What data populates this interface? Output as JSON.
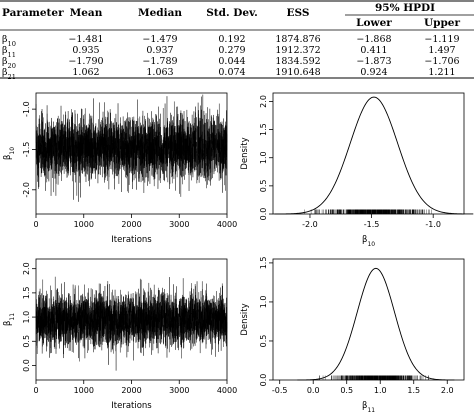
{
  "table": {
    "headers": [
      "Parameter",
      "Mean",
      "Median",
      "Std. Dev.",
      "ESS"
    ],
    "hpdi_group": "95% HPDI",
    "hpdi_subheaders": [
      "Lower",
      "Upper"
    ],
    "rows": [
      {
        "param": "β10",
        "base": "β",
        "sub": "10",
        "values": [
          "−1.481",
          "−1.479",
          "0.192",
          "1874.876",
          "−1.868",
          "−1.119"
        ]
      },
      {
        "param": "β11",
        "base": "β",
        "sub": "11",
        "values": [
          "0.935",
          "0.937",
          "0.279",
          "1912.372",
          "0.411",
          "1.497"
        ]
      },
      {
        "param": "β20",
        "base": "β",
        "sub": "20",
        "values": [
          "−1.790",
          "−1.789",
          "0.044",
          "1834.592",
          "−1.873",
          "−1.706"
        ]
      },
      {
        "param": "β21",
        "base": "β",
        "sub": "21",
        "values": [
          "1.062",
          "1.063",
          "0.074",
          "1910.648",
          "0.924",
          "1.211"
        ]
      }
    ]
  },
  "chart_data": [
    {
      "type": "line",
      "subtype": "trace",
      "xlabel": "Iterations",
      "ylabel_base": "β",
      "ylabel_sub": "10",
      "x_range": [
        0,
        4000
      ],
      "xticks": [
        0,
        1000,
        2000,
        3000,
        4000
      ],
      "ylim": [
        -2.3,
        -0.8
      ],
      "yticks": [
        -2.0,
        -1.5,
        -1.0
      ],
      "ytick_labels": [
        "-2.0",
        "-1.5",
        "-1.0"
      ],
      "n_iterations": 4000,
      "mean": -1.481,
      "sd": 0.192
    },
    {
      "type": "line",
      "subtype": "density",
      "xlabel_base": "β",
      "xlabel_sub": "10",
      "ylabel": "Density",
      "xlim": [
        -2.3,
        -0.75
      ],
      "xticks": [
        -2.0,
        -1.5,
        -1.0
      ],
      "xtick_labels": [
        "-2.0",
        "-1.5",
        "-1.0"
      ],
      "ylim": [
        0,
        2.15
      ],
      "yticks": [
        0.0,
        0.5,
        1.0,
        1.5,
        2.0
      ],
      "ytick_labels": [
        "0.0",
        "0.5",
        "1.0",
        "1.5",
        "2.0"
      ],
      "mean": -1.481,
      "sd": 0.192,
      "rug": true
    },
    {
      "type": "line",
      "subtype": "trace",
      "xlabel": "Iterations",
      "ylabel_base": "β",
      "ylabel_sub": "11",
      "x_range": [
        0,
        4000
      ],
      "xticks": [
        0,
        1000,
        2000,
        3000,
        4000
      ],
      "ylim": [
        -0.3,
        2.2
      ],
      "yticks": [
        0.0,
        0.5,
        1.0,
        1.5,
        2.0
      ],
      "ytick_labels": [
        "0.0",
        "0.5",
        "1.0",
        "1.5",
        "2.0"
      ],
      "n_iterations": 4000,
      "mean": 0.935,
      "sd": 0.279
    },
    {
      "type": "line",
      "subtype": "density",
      "xlabel_base": "β",
      "xlabel_sub": "11",
      "ylabel": "Density",
      "xlim": [
        -0.6,
        2.25
      ],
      "xticks": [
        -0.5,
        0.0,
        0.5,
        1.0,
        1.5,
        2.0
      ],
      "xtick_labels": [
        "-0.5",
        "0.0",
        "0.5",
        "1.0",
        "1.5",
        "2.0"
      ],
      "ylim": [
        0,
        1.55
      ],
      "yticks": [
        0.0,
        0.5,
        1.0,
        1.5
      ],
      "ytick_labels": [
        "0.0",
        "0.5",
        "1.0",
        "1.5"
      ],
      "mean": 0.935,
      "sd": 0.279,
      "rug": true
    }
  ]
}
